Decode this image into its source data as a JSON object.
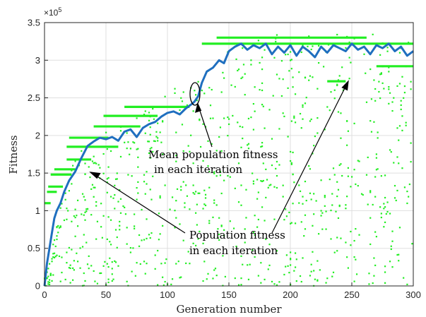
{
  "chart_data": {
    "type": "scatter",
    "xlabel": "Generation number",
    "ylabel": "Fitness",
    "xlim": [
      0,
      300
    ],
    "ylim": [
      0,
      350000
    ],
    "xticks": [
      0,
      50,
      100,
      150,
      200,
      250,
      300
    ],
    "xtick_labels": [
      "0",
      "50",
      "100",
      "150",
      "200",
      "250",
      "300"
    ],
    "yticks": [
      0,
      50000,
      100000,
      150000,
      200000,
      250000,
      300000,
      350000
    ],
    "ytick_labels": [
      "0",
      "0.5",
      "1",
      "1.5",
      "2",
      "2.5",
      "3",
      "3.5"
    ],
    "y_exponent_label": "×10",
    "y_exponent_power": "5",
    "grid": true,
    "colors": {
      "population": "#22ee22",
      "mean": "#1f6fbf"
    },
    "mean_fitness_curve": {
      "x": [
        0,
        2,
        4,
        6,
        8,
        10,
        13,
        16,
        20,
        25,
        30,
        35,
        40,
        45,
        50,
        55,
        60,
        65,
        70,
        75,
        80,
        85,
        90,
        95,
        100,
        105,
        110,
        115,
        120,
        122,
        125,
        128,
        132,
        137,
        142,
        146,
        150,
        155,
        160,
        165,
        170,
        175,
        180,
        185,
        190,
        195,
        200,
        205,
        210,
        215,
        220,
        225,
        230,
        235,
        240,
        245,
        250,
        255,
        260,
        265,
        270,
        275,
        280,
        285,
        290,
        295,
        300
      ],
      "y": [
        0,
        30000,
        50000,
        70000,
        90000,
        100000,
        110000,
        125000,
        140000,
        152000,
        170000,
        186000,
        192000,
        197000,
        195000,
        198000,
        193000,
        205000,
        208000,
        198000,
        210000,
        215000,
        218000,
        225000,
        230000,
        232000,
        228000,
        236000,
        242000,
        245000,
        252000,
        270000,
        285000,
        290000,
        300000,
        296000,
        312000,
        318000,
        322000,
        314000,
        320000,
        316000,
        322000,
        308000,
        318000,
        310000,
        320000,
        306000,
        318000,
        312000,
        304000,
        318000,
        310000,
        320000,
        316000,
        312000,
        322000,
        314000,
        318000,
        308000,
        320000,
        316000,
        322000,
        312000,
        318000,
        306000,
        312000
      ]
    },
    "population_fitness_plateaus": [
      {
        "x": [
          0,
          5
        ],
        "y": 110000
      },
      {
        "x": [
          2,
          10
        ],
        "y": 125000
      },
      {
        "x": [
          3,
          15
        ],
        "y": 132000
      },
      {
        "x": [
          5,
          22
        ],
        "y": 148000
      },
      {
        "x": [
          8,
          25
        ],
        "y": 155000
      },
      {
        "x": [
          18,
          38
        ],
        "y": 168000
      },
      {
        "x": [
          18,
          60
        ],
        "y": 185000
      },
      {
        "x": [
          20,
          52
        ],
        "y": 197000
      },
      {
        "x": [
          40,
          78
        ],
        "y": 212000
      },
      {
        "x": [
          48,
          92
        ],
        "y": 226000
      },
      {
        "x": [
          65,
          118
        ],
        "y": 238000
      },
      {
        "x": [
          128,
          300
        ],
        "y": 322000
      },
      {
        "x": [
          140,
          262
        ],
        "y": 330000
      },
      {
        "x": [
          230,
          245
        ],
        "y": 272000
      },
      {
        "x": [
          270,
          300
        ],
        "y": 292000
      }
    ],
    "annotations": [
      {
        "lines": [
          "Mean population fitness",
          "in each iteration"
        ],
        "target": [
          122,
          248000
        ]
      },
      {
        "lines": [
          "Population fitness",
          "in each iteration"
        ],
        "targets": [
          [
            32,
            155000
          ],
          [
            246,
            272000
          ]
        ]
      }
    ]
  }
}
